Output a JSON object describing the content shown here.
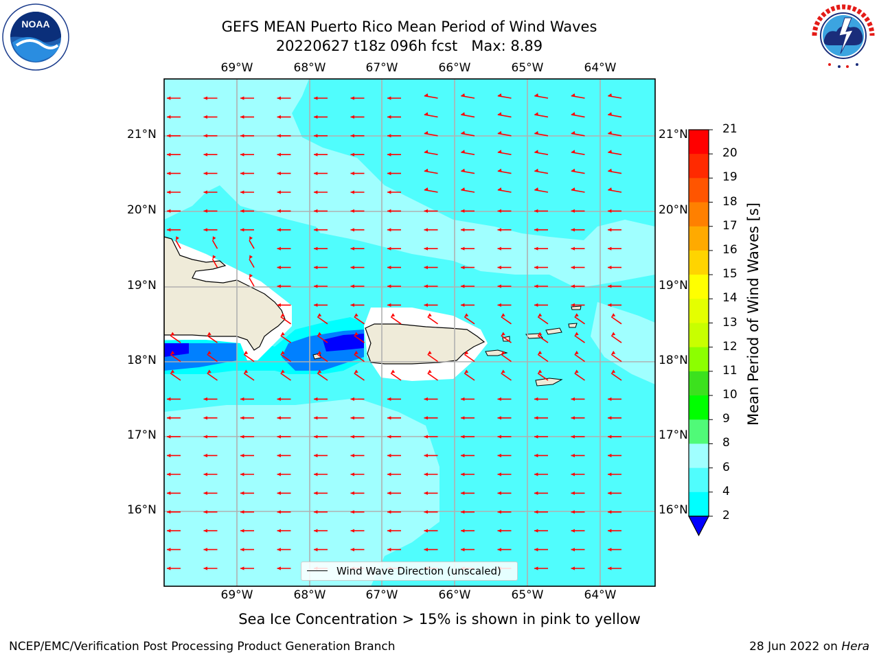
{
  "header": {
    "title_line1": "GEFS MEAN Puerto Rico Mean Period of Wind Waves",
    "title_line2": "20220627 t18z 096h fcst   Max: 8.89"
  },
  "logos": {
    "left": "noaa-logo",
    "right": "national-weather-service-logo"
  },
  "map": {
    "lon_labels": [
      "69°W",
      "68°W",
      "67°W",
      "66°W",
      "65°W",
      "64°W"
    ],
    "lat_labels": [
      "21°N",
      "20°N",
      "19°N",
      "18°N",
      "17°N",
      "16°N"
    ],
    "legend_label": "Wind Wave Direction (unscaled)",
    "arrow_color": "#ff0000",
    "land_color": "#efebd9"
  },
  "colorbar": {
    "label": "Mean Period of Wind Waves [s]",
    "ticks": [
      "21",
      "20",
      "19",
      "18",
      "17",
      "16",
      "15",
      "14",
      "13",
      "12",
      "11",
      "10",
      "9",
      "8",
      "6",
      "4",
      "2"
    ],
    "colors": [
      "#ff0000",
      "#ff2a00",
      "#ff5500",
      "#ff8000",
      "#ffaa00",
      "#ffd400",
      "#ffff00",
      "#e4ff00",
      "#c8ff00",
      "#8cff00",
      "#3ce11e",
      "#00ff00",
      "#50fa78",
      "#a0ffff",
      "#50fdfd",
      "#00ffff",
      "#0080ff",
      "#0000ff"
    ]
  },
  "caption": "Sea Ice Concentration > 15% is shown in pink to yellow",
  "footer": {
    "left": "NCEP/EMC/Verification Post Processing Product Generation Branch",
    "right_date": "28 Jun 2022 on ",
    "right_host": "Hera"
  }
}
